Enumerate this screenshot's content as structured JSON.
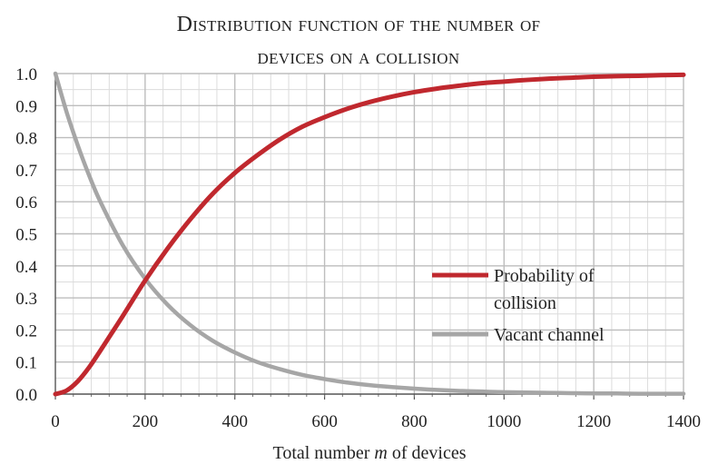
{
  "chart_data": {
    "type": "line",
    "title_line1": "Distribution function of the number of",
    "title_line2": "devices on a collision",
    "xlabel_prefix": "Total number ",
    "xlabel_var": "m",
    "xlabel_suffix": " of devices",
    "ylabel": "",
    "xlim": [
      0,
      1400
    ],
    "ylim": [
      0,
      1.0
    ],
    "x_ticks": [
      "0",
      "200",
      "400",
      "600",
      "800",
      "1000",
      "1200",
      "1400"
    ],
    "y_ticks": [
      "0.0",
      "0.1",
      "0.2",
      "0.3",
      "0.4",
      "0.5",
      "0.6",
      "0.7",
      "0.8",
      "0.9",
      "1.0"
    ],
    "grid": true,
    "legend_position": "right-middle",
    "x": [
      0,
      25,
      50,
      75,
      100,
      150,
      200,
      250,
      300,
      350,
      400,
      450,
      500,
      550,
      600,
      650,
      700,
      750,
      800,
      850,
      900,
      950,
      1000,
      1050,
      1100,
      1150,
      1200,
      1250,
      1300,
      1350,
      1400
    ],
    "series": [
      {
        "name": "Probability of collision",
        "name_line1": "Probability of",
        "name_line2": "collision",
        "color": "#c0282e",
        "values": [
          0.0,
          0.011,
          0.04,
          0.083,
          0.135,
          0.243,
          0.354,
          0.454,
          0.544,
          0.624,
          0.69,
          0.745,
          0.794,
          0.834,
          0.864,
          0.89,
          0.911,
          0.928,
          0.942,
          0.953,
          0.962,
          0.97,
          0.975,
          0.98,
          0.984,
          0.987,
          0.99,
          0.992,
          0.993,
          0.995,
          0.996
        ]
      },
      {
        "name": "Vacant channel",
        "color": "#a6a6a6",
        "values": [
          1.0,
          0.88,
          0.776,
          0.683,
          0.601,
          0.465,
          0.36,
          0.279,
          0.216,
          0.167,
          0.13,
          0.1,
          0.078,
          0.06,
          0.047,
          0.036,
          0.028,
          0.022,
          0.017,
          0.013,
          0.01,
          0.008,
          0.006,
          0.005,
          0.004,
          0.003,
          0.002,
          0.002,
          0.001,
          0.001,
          0.001
        ]
      }
    ]
  }
}
